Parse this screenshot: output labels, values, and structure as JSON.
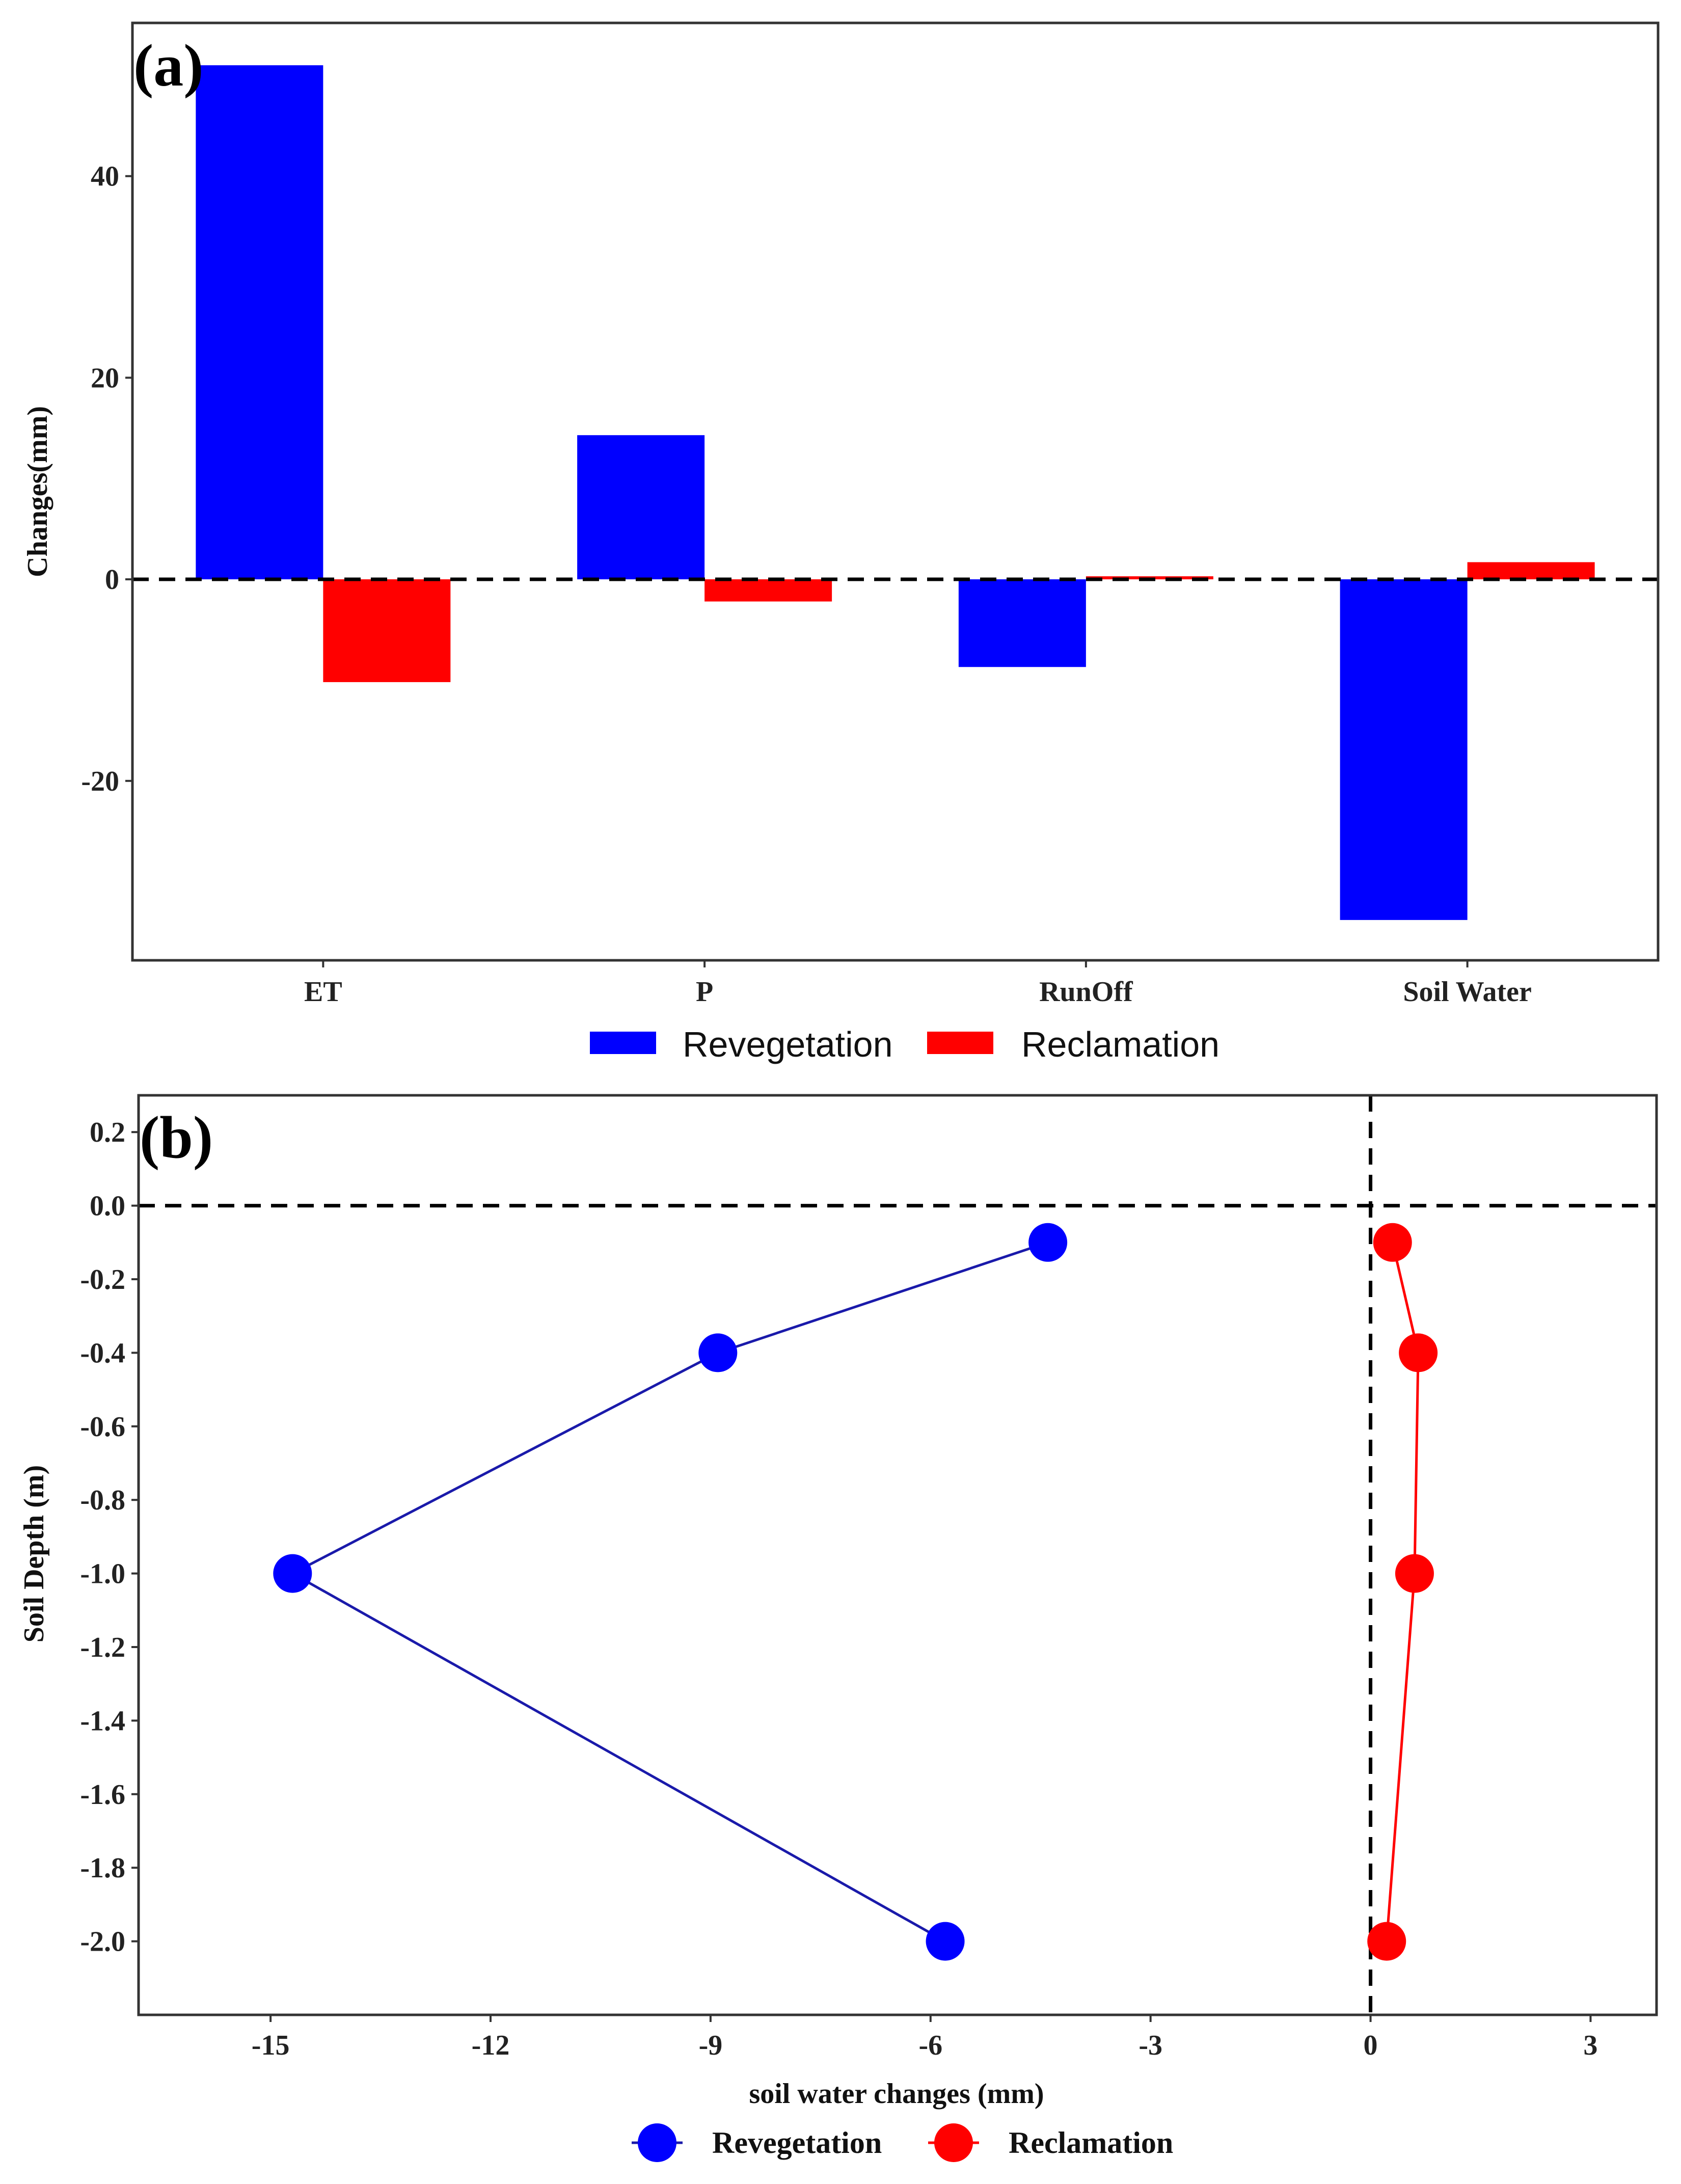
{
  "colors": {
    "revegetation": "#0000ff",
    "reclamation": "#ff0000",
    "line_revegetation": "#1a1aaa",
    "axis": "#333333"
  },
  "chart_data": [
    {
      "type": "bar",
      "panel_label": "(a)",
      "title": "",
      "xlabel": "",
      "ylabel": "Changes(mm)",
      "categories": [
        "ET",
        "P",
        "RunOff",
        "Soil Water"
      ],
      "series": [
        {
          "name": "Revegetation",
          "values": [
            51,
            14.3,
            -8.7,
            -33.8
          ]
        },
        {
          "name": "Reclamation",
          "values": [
            -10.2,
            -2.2,
            0.3,
            1.7
          ]
        }
      ],
      "ylim": [
        -37.8,
        55.2
      ],
      "yticks": [
        -20,
        0,
        20,
        40
      ],
      "ytick_labels": [
        "-20",
        "0",
        "20",
        "40"
      ],
      "reference_line": {
        "axis": "y",
        "value": 0,
        "style": "dashed"
      },
      "legend": {
        "position": "bottom",
        "entries": [
          "Revegetation",
          "Reclamation"
        ]
      },
      "grid": false
    },
    {
      "type": "line",
      "panel_label": "(b)",
      "title": "",
      "xlabel": "soil water changes (mm)",
      "ylabel": "Soil Depth (m)",
      "series": [
        {
          "name": "Revegetation",
          "x": [
            -4.4,
            -8.9,
            -14.7,
            -5.8
          ],
          "y": [
            -0.1,
            -0.4,
            -1.0,
            -2.0
          ]
        },
        {
          "name": "Reclamation",
          "x": [
            0.3,
            0.65,
            0.6,
            0.22
          ],
          "y": [
            -0.1,
            -0.4,
            -1.0,
            -2.0
          ]
        }
      ],
      "xlim": [
        -16.8,
        3.9
      ],
      "ylim": [
        -2.2,
        0.3
      ],
      "xticks": [
        -15,
        -12,
        -9,
        -6,
        -3,
        0,
        3
      ],
      "xtick_labels": [
        "-15",
        "-12",
        "-9",
        "-6",
        "-3",
        "0",
        "3"
      ],
      "yticks": [
        0.2,
        0.0,
        -0.2,
        -0.4,
        -0.6,
        -0.8,
        -1.0,
        -1.2,
        -1.4,
        -1.6,
        -1.8,
        -2.0
      ],
      "ytick_labels": [
        "0.2",
        "0.0",
        "-0.2",
        "-0.4",
        "-0.6",
        "-0.8",
        "-1.0",
        "-1.2",
        "-1.4",
        "-1.6",
        "-1.8",
        "-2.0"
      ],
      "reference_lines": [
        {
          "axis": "y",
          "value": 0,
          "style": "dashed"
        },
        {
          "axis": "x",
          "value": 0,
          "style": "dashed"
        }
      ],
      "legend": {
        "position": "bottom",
        "entries": [
          "Revegetation",
          "Reclamation"
        ]
      },
      "grid": false
    }
  ]
}
